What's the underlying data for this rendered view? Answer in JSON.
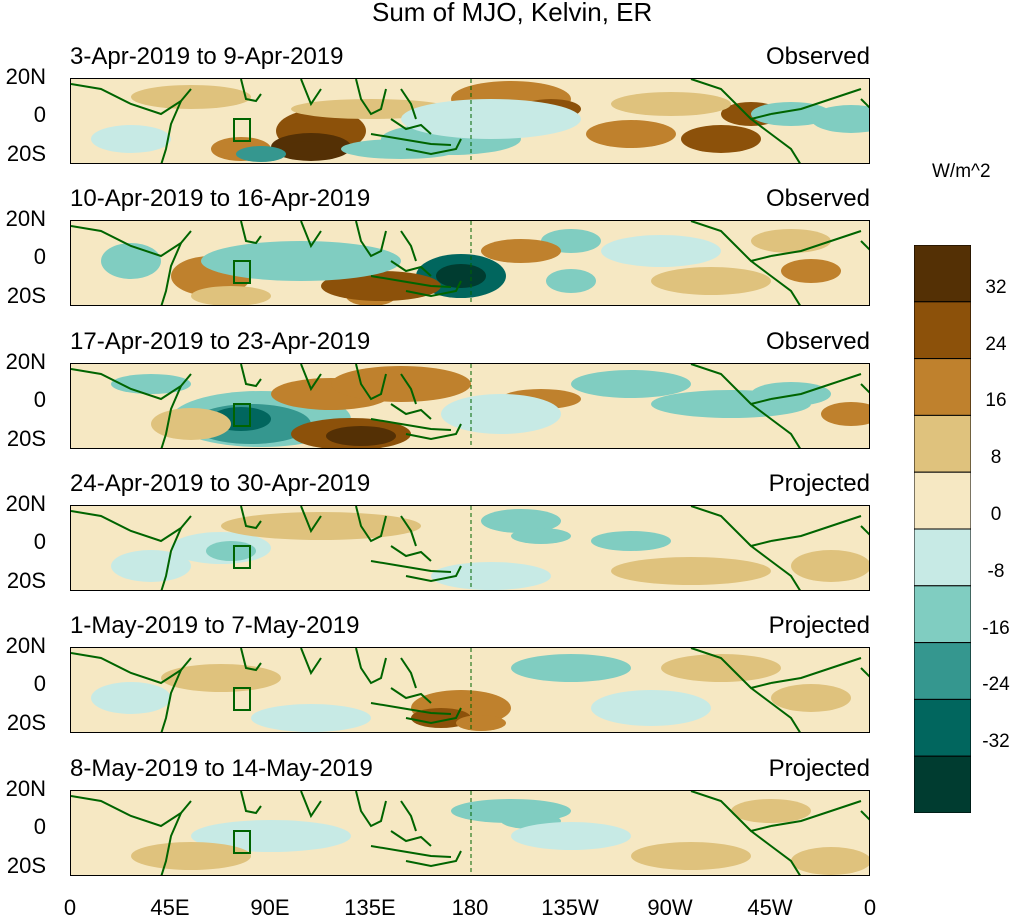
{
  "figure": {
    "title": "Sum of MJO, Kelvin, ER"
  },
  "panels": [
    {
      "period": "3-Apr-2019 to 9-Apr-2019",
      "status": "Observed"
    },
    {
      "period": "10-Apr-2019 to 16-Apr-2019",
      "status": "Observed"
    },
    {
      "period": "17-Apr-2019 to 23-Apr-2019",
      "status": "Observed"
    },
    {
      "period": "24-Apr-2019 to 30-Apr-2019",
      "status": "Projected"
    },
    {
      "period": "1-May-2019 to 7-May-2019",
      "status": "Projected"
    },
    {
      "period": "8-May-2019 to 14-May-2019",
      "status": "Projected"
    }
  ],
  "lat_labels": [
    "20N",
    "0",
    "20S"
  ],
  "lon_labels": [
    "0",
    "45E",
    "90E",
    "135E",
    "180",
    "135W",
    "90W",
    "45W",
    "0"
  ],
  "colorbar": {
    "units": "W/m^2",
    "ticks": [
      "32",
      "24",
      "16",
      "8",
      "0",
      "-8",
      "-16",
      "-24",
      "-32"
    ],
    "colors": [
      "#543005",
      "#8c510a",
      "#bf812d",
      "#dfc27d",
      "#f6e8c3",
      "#c7eae5",
      "#80cdc1",
      "#35978f",
      "#01665e",
      "#003c30"
    ]
  },
  "colors": {
    "coastline": "#006400",
    "dateline": "#006400"
  }
}
